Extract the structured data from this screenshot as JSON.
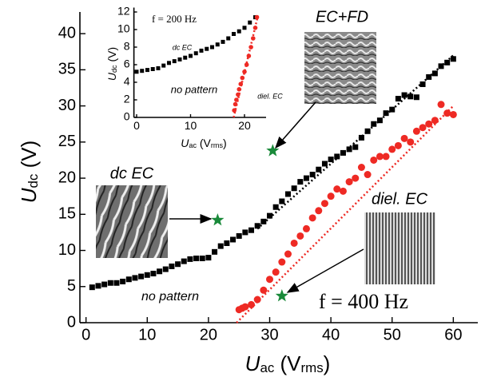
{
  "chart_data": [
    {
      "type": "scatter",
      "x_label": [
        "U",
        "ac",
        " (V",
        "rms",
        ")"
      ],
      "y_label": [
        "U",
        "dc",
        " (V)"
      ],
      "xlim": [
        -1,
        64
      ],
      "ylim": [
        0,
        43
      ],
      "xticks": [
        0,
        10,
        20,
        30,
        40,
        50,
        60
      ],
      "yticks": [
        0,
        5,
        10,
        15,
        20,
        25,
        30,
        35,
        40
      ],
      "series": [
        {
          "marker": "square",
          "color": "#000000",
          "x": [
            1,
            2,
            3,
            4,
            5,
            6,
            7,
            8,
            9,
            10,
            11,
            12,
            13,
            14,
            15,
            16,
            17,
            18,
            19,
            20,
            21,
            22,
            23,
            24,
            25,
            26,
            27,
            28,
            29,
            30,
            31,
            32,
            33,
            34,
            35,
            36,
            37,
            38,
            39,
            40,
            41,
            42,
            43,
            44,
            45,
            46,
            47,
            48,
            49,
            50,
            51,
            52,
            53,
            54,
            55,
            56,
            57,
            58,
            59,
            60
          ],
          "y": [
            4.9,
            5.1,
            5.3,
            5.5,
            5.5,
            5.7,
            6.0,
            6.2,
            6.4,
            6.6,
            6.8,
            7.1,
            7.4,
            7.8,
            8.1,
            8.5,
            8.8,
            8.9,
            8.9,
            9.0,
            9.8,
            10.6,
            11.0,
            11.5,
            12.0,
            12.5,
            12.8,
            13.4,
            14.0,
            14.8,
            16.0,
            16.8,
            17.8,
            18.6,
            19.5,
            20.0,
            20.5,
            21.2,
            22.0,
            22.6,
            23.0,
            23.5,
            24.0,
            24.3,
            25.6,
            26.5,
            27.5,
            28.0,
            29.0,
            29.5,
            31.0,
            31.5,
            31.3,
            31.2,
            33.0,
            34.0,
            34.5,
            35.5,
            36.0,
            36.5
          ]
        },
        {
          "marker": "circle",
          "color": "#ee2a24",
          "x": [
            25,
            25.5,
            26,
            27,
            28,
            29,
            30,
            31,
            32,
            33,
            34,
            35,
            36,
            37,
            38,
            39,
            40,
            41,
            42,
            43,
            44,
            45,
            46,
            47,
            48,
            49,
            50,
            51,
            52,
            53,
            54,
            55,
            56,
            57,
            58,
            59,
            60
          ],
          "y": [
            1.8,
            2.0,
            2.2,
            2.5,
            3.2,
            4.5,
            6.0,
            7.0,
            8.4,
            9.5,
            11.0,
            12.0,
            13.0,
            14.5,
            15.5,
            16.5,
            17.5,
            18.5,
            18.2,
            19.5,
            20.0,
            21.5,
            20.5,
            22.5,
            23.0,
            23.0,
            24.0,
            24.5,
            25.5,
            25.0,
            26.5,
            27.0,
            27.5,
            28.0,
            30.2,
            29.0,
            28.8
          ]
        },
        {
          "marker": "dotted-line",
          "color": "#000000",
          "x": [
            28,
            60
          ],
          "y": [
            13,
            37
          ]
        },
        {
          "marker": "dotted-line",
          "color": "#ee2a24",
          "x": [
            24.6,
            60
          ],
          "y": [
            0,
            30
          ]
        },
        {
          "marker": "star",
          "color": "#1a8a3a",
          "x": [
            30.5,
            21.5,
            32
          ],
          "y": [
            23.8,
            14.2,
            3.7
          ]
        }
      ],
      "annotations": [
        "EC+FD",
        "dc EC",
        "diel. EC",
        "no pattern",
        "f = 400 Hz"
      ]
    },
    {
      "type": "scatter",
      "x_label": [
        "U",
        "ac",
        " (V",
        "rms",
        ")"
      ],
      "y_label": [
        "U",
        "dc",
        " (V)"
      ],
      "xlim": [
        -0.5,
        24
      ],
      "ylim": [
        0,
        12.5
      ],
      "xticks": [
        0,
        10,
        20
      ],
      "yticks": [
        0,
        2,
        4,
        6,
        8,
        10,
        12
      ],
      "series": [
        {
          "marker": "square",
          "color": "#000000",
          "x": [
            0,
            1,
            2,
            3,
            4,
            5,
            6,
            7,
            8,
            9,
            10,
            11,
            12,
            13,
            14,
            15,
            16,
            17,
            18,
            19,
            20,
            21,
            22
          ],
          "y": [
            5.2,
            5.3,
            5.4,
            5.5,
            5.6,
            5.9,
            6.2,
            6.4,
            6.6,
            6.8,
            7.0,
            7.3,
            7.6,
            7.8,
            8.0,
            8.3,
            8.6,
            9.0,
            9.5,
            9.8,
            10.2,
            10.8,
            11.4
          ]
        },
        {
          "marker": "circle",
          "color": "#ee2a24",
          "x": [
            18.1,
            18.3,
            18.5,
            18.8,
            19.0,
            19.3,
            19.6,
            20,
            20.4,
            20.8,
            21.2,
            21.6,
            22,
            22.3
          ],
          "y": [
            0.8,
            1.5,
            2.0,
            2.6,
            3.2,
            3.8,
            4.5,
            5.2,
            6.0,
            7.0,
            8.0,
            9.0,
            10.2,
            11.4
          ]
        },
        {
          "marker": "dotted-line",
          "color": "#ee2a24",
          "x": [
            18,
            22.5
          ],
          "y": [
            0,
            11.6
          ]
        }
      ],
      "annotations": [
        "f = 200 Hz",
        "dc EC",
        "no pattern",
        "diel. EC"
      ]
    }
  ]
}
